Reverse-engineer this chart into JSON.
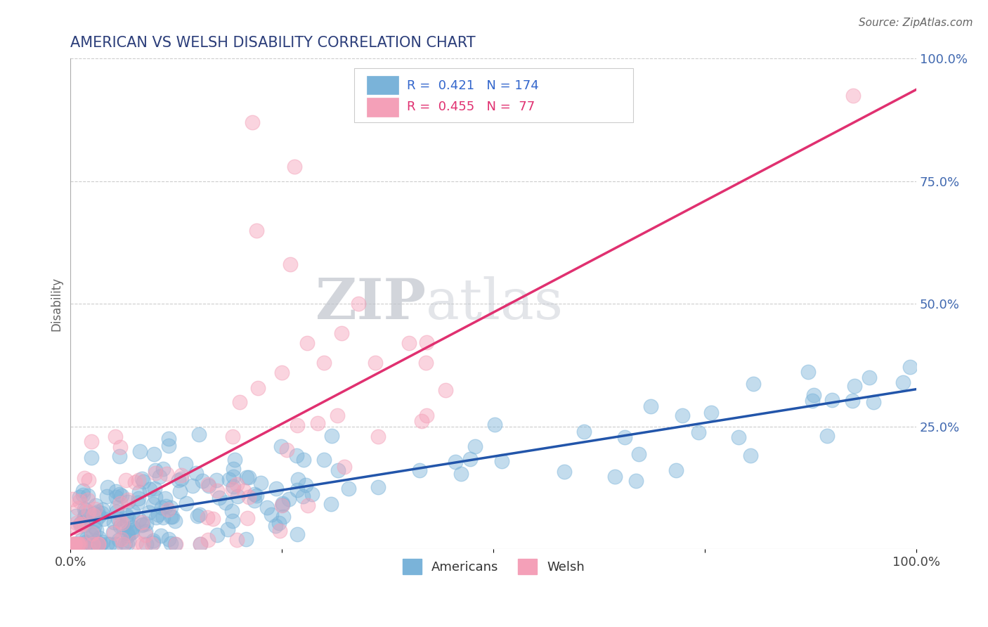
{
  "title": "AMERICAN VS WELSH DISABILITY CORRELATION CHART",
  "source": "Source: ZipAtlas.com",
  "ylabel": "Disability",
  "americans_color": "#7ab3d9",
  "welsh_color": "#f4a0b8",
  "americans_line_color": "#2255aa",
  "welsh_line_color": "#e03070",
  "R_americans": 0.421,
  "N_americans": 174,
  "R_welsh": 0.455,
  "N_welsh": 77,
  "background_color": "#ffffff",
  "grid_color": "#cccccc",
  "title_color": "#2c3e7a",
  "watermark_color": "#d8dde8"
}
